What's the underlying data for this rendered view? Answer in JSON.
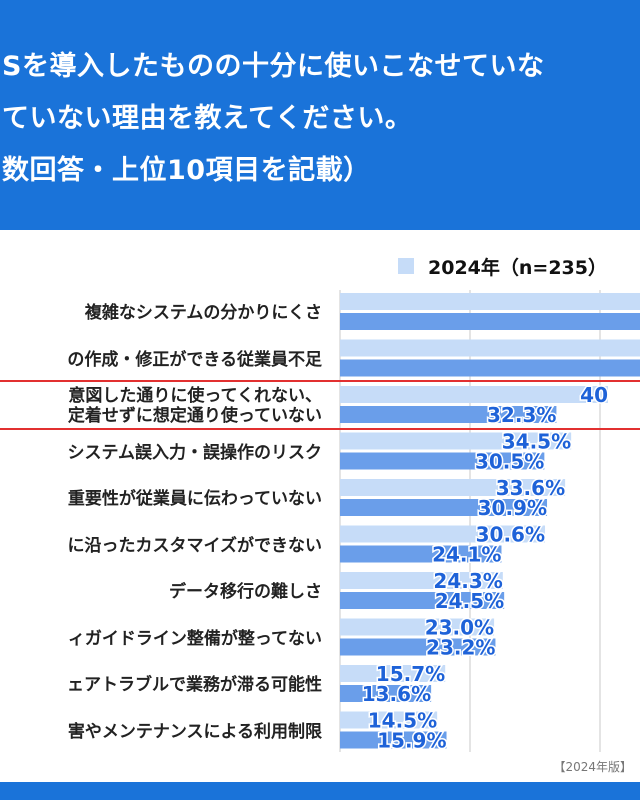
{
  "header": {
    "lines": [
      "Sを導入したものの十分に使いこなせていな",
      "ていない理由を教えてください。",
      "数回答・上位10項目を記載）"
    ]
  },
  "legend": {
    "label": "2024年（n=235）"
  },
  "source": "【2024年版】",
  "colors": {
    "header": "#1a73d9",
    "series_light": "#c6dcf8",
    "series_dark": "#6a9eea",
    "highlight": "#e23030",
    "value_text": "#1e62d8"
  },
  "chart_data": {
    "type": "bar",
    "orientation": "horizontal",
    "categories": [
      "複雑なシステムの分かりにくさ",
      "の作成・修正ができる従業員不足",
      "意図した通りに使ってくれない、\n定着せずに想定通り使っていない",
      "システム誤入力・誤操作のリスク",
      "重要性が従業員に伝わっていない",
      "に沿ったカスタマイズができない",
      "データ移行の難しさ",
      "ィガイドライン整備が整ってない",
      "ェアトラブルで業務が滞る可能性",
      "害やメンテナンスによる利用制限"
    ],
    "series": [
      {
        "values": [
          null,
          null,
          40,
          34.5,
          33.6,
          30.6,
          24.3,
          23.0,
          15.7,
          14.5
        ]
      },
      {
        "values": [
          null,
          null,
          32.3,
          30.5,
          30.9,
          24.1,
          24.5,
          23.2,
          13.6,
          15.9
        ]
      }
    ],
    "value_labels": [
      [
        "",
        ""
      ],
      [
        "",
        ""
      ],
      [
        "40",
        "32.3%"
      ],
      [
        "34.5%",
        "30.5%"
      ],
      [
        "33.6%",
        "30.9%"
      ],
      [
        "30.6%",
        "24.1%"
      ],
      [
        "24.3%",
        "24.5%"
      ],
      [
        "23.0%",
        "23.2%"
      ],
      [
        "15.7%",
        "13.6%"
      ],
      [
        "14.5%",
        "15.9%"
      ]
    ],
    "grid": true,
    "legend_position": "top-right"
  }
}
